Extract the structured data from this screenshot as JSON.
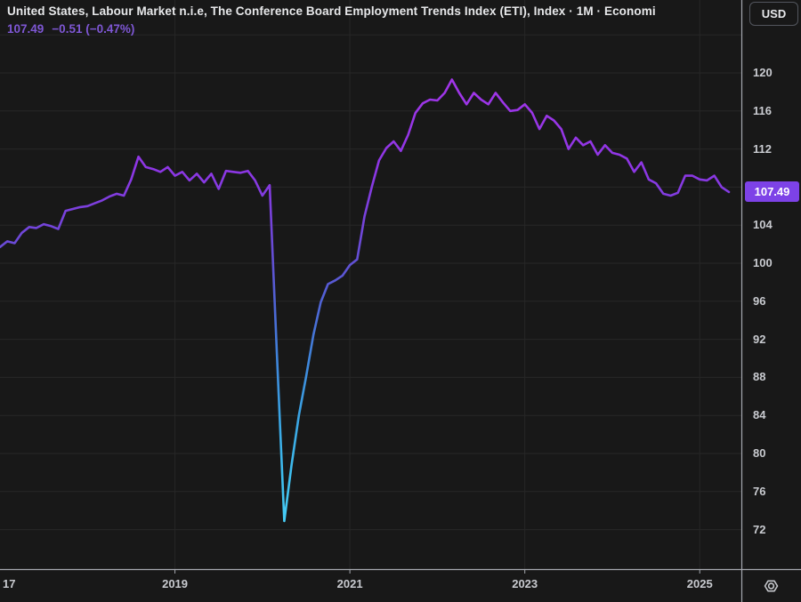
{
  "header": {
    "title": "United States, Labour Market n.i.e, The Conference Board Employment Trends Index (ETI), Index · 1M · Economi",
    "last_value": "107.49",
    "change": "−0.51 (−0.47%)"
  },
  "price_scale": {
    "currency_label": "USD",
    "ticks": [
      "120",
      "116",
      "112",
      "104",
      "100",
      "96",
      "92",
      "88",
      "84",
      "80",
      "76",
      "72"
    ],
    "price_badge": "107.49"
  },
  "time_scale": {
    "ticks": [
      {
        "label": "17",
        "year": 2017,
        "align": "left"
      },
      {
        "label": "2019",
        "year": 2019,
        "align": "center"
      },
      {
        "label": "2021",
        "year": 2021,
        "align": "center"
      },
      {
        "label": "2023",
        "year": 2023,
        "align": "center"
      },
      {
        "label": "2025",
        "year": 2025,
        "align": "center"
      }
    ]
  },
  "icons": {
    "bottom_right": "hexagon-dot-icon"
  },
  "colors": {
    "background": "#181818",
    "grid": "#272727",
    "axis_line": "#a6a9b0",
    "axis_text": "#c9cbd0",
    "title_text": "#e7e8ea",
    "legend_text": "#7e57d4",
    "badge_bg": "#7d42e7",
    "badge_text": "#ffffff",
    "line_gradient": [
      {
        "at": "0%",
        "color": "#a335e8"
      },
      {
        "at": "21%",
        "color": "#8d36e4"
      },
      {
        "at": "33%",
        "color": "#7444da"
      },
      {
        "at": "41%",
        "color": "#6150d4"
      },
      {
        "at": "50%",
        "color": "#4f63d4"
      },
      {
        "at": "62%",
        "color": "#3f84da"
      },
      {
        "at": "74%",
        "color": "#3aa2e2"
      },
      {
        "at": "87%",
        "color": "#3ebdee"
      },
      {
        "at": "100%",
        "color": "#48d0f7"
      }
    ]
  },
  "chart_data": {
    "type": "line",
    "title": "United States, Labour Market n.i.e, The Conference Board Employment Trends Index (ETI)",
    "unit": "Index",
    "interval": "1M",
    "source_tag": "Economi",
    "last_price": 107.49,
    "change": -0.51,
    "change_pct": -0.47,
    "x_start": "2017-01",
    "x_end": "2025-05",
    "frequency": "monthly",
    "ylim": [
      70,
      122
    ],
    "grid": true,
    "legend_position": "top-left",
    "y_ticks_labeled": [
      120,
      116,
      112,
      104,
      100,
      96,
      92,
      88,
      84,
      80,
      76,
      72
    ],
    "y_grid": [
      124,
      120,
      116,
      112,
      108,
      104,
      100,
      96,
      92,
      88,
      84,
      80,
      76,
      72
    ],
    "x_tick_years": [
      2017,
      2019,
      2021,
      2023,
      2025
    ],
    "values": [
      101.7,
      102.3,
      102.1,
      103.2,
      103.8,
      103.7,
      104.1,
      103.9,
      103.6,
      105.5,
      105.7,
      105.9,
      106.0,
      106.3,
      106.6,
      107.0,
      107.3,
      107.1,
      108.8,
      111.2,
      110.1,
      109.9,
      109.6,
      110.1,
      109.2,
      109.6,
      108.7,
      109.4,
      108.5,
      109.4,
      107.8,
      109.7,
      109.6,
      109.5,
      109.7,
      108.7,
      107.1,
      108.2,
      90.3,
      72.9,
      78.8,
      84.0,
      88.1,
      92.5,
      95.9,
      97.8,
      98.2,
      98.7,
      99.8,
      100.4,
      104.9,
      108.0,
      110.8,
      112.1,
      112.8,
      111.8,
      113.5,
      115.8,
      116.8,
      117.2,
      117.1,
      117.9,
      119.3,
      117.9,
      116.7,
      117.9,
      117.2,
      116.7,
      117.9,
      116.9,
      116.0,
      116.1,
      116.7,
      115.8,
      114.1,
      115.5,
      115.0,
      114.1,
      112.0,
      113.2,
      112.4,
      112.8,
      111.4,
      112.4,
      111.6,
      111.4,
      111.0,
      109.6,
      110.6,
      108.8,
      108.4,
      107.3,
      107.1,
      107.4,
      109.2,
      109.2,
      108.8,
      108.7,
      109.2,
      108.0,
      107.49
    ]
  }
}
